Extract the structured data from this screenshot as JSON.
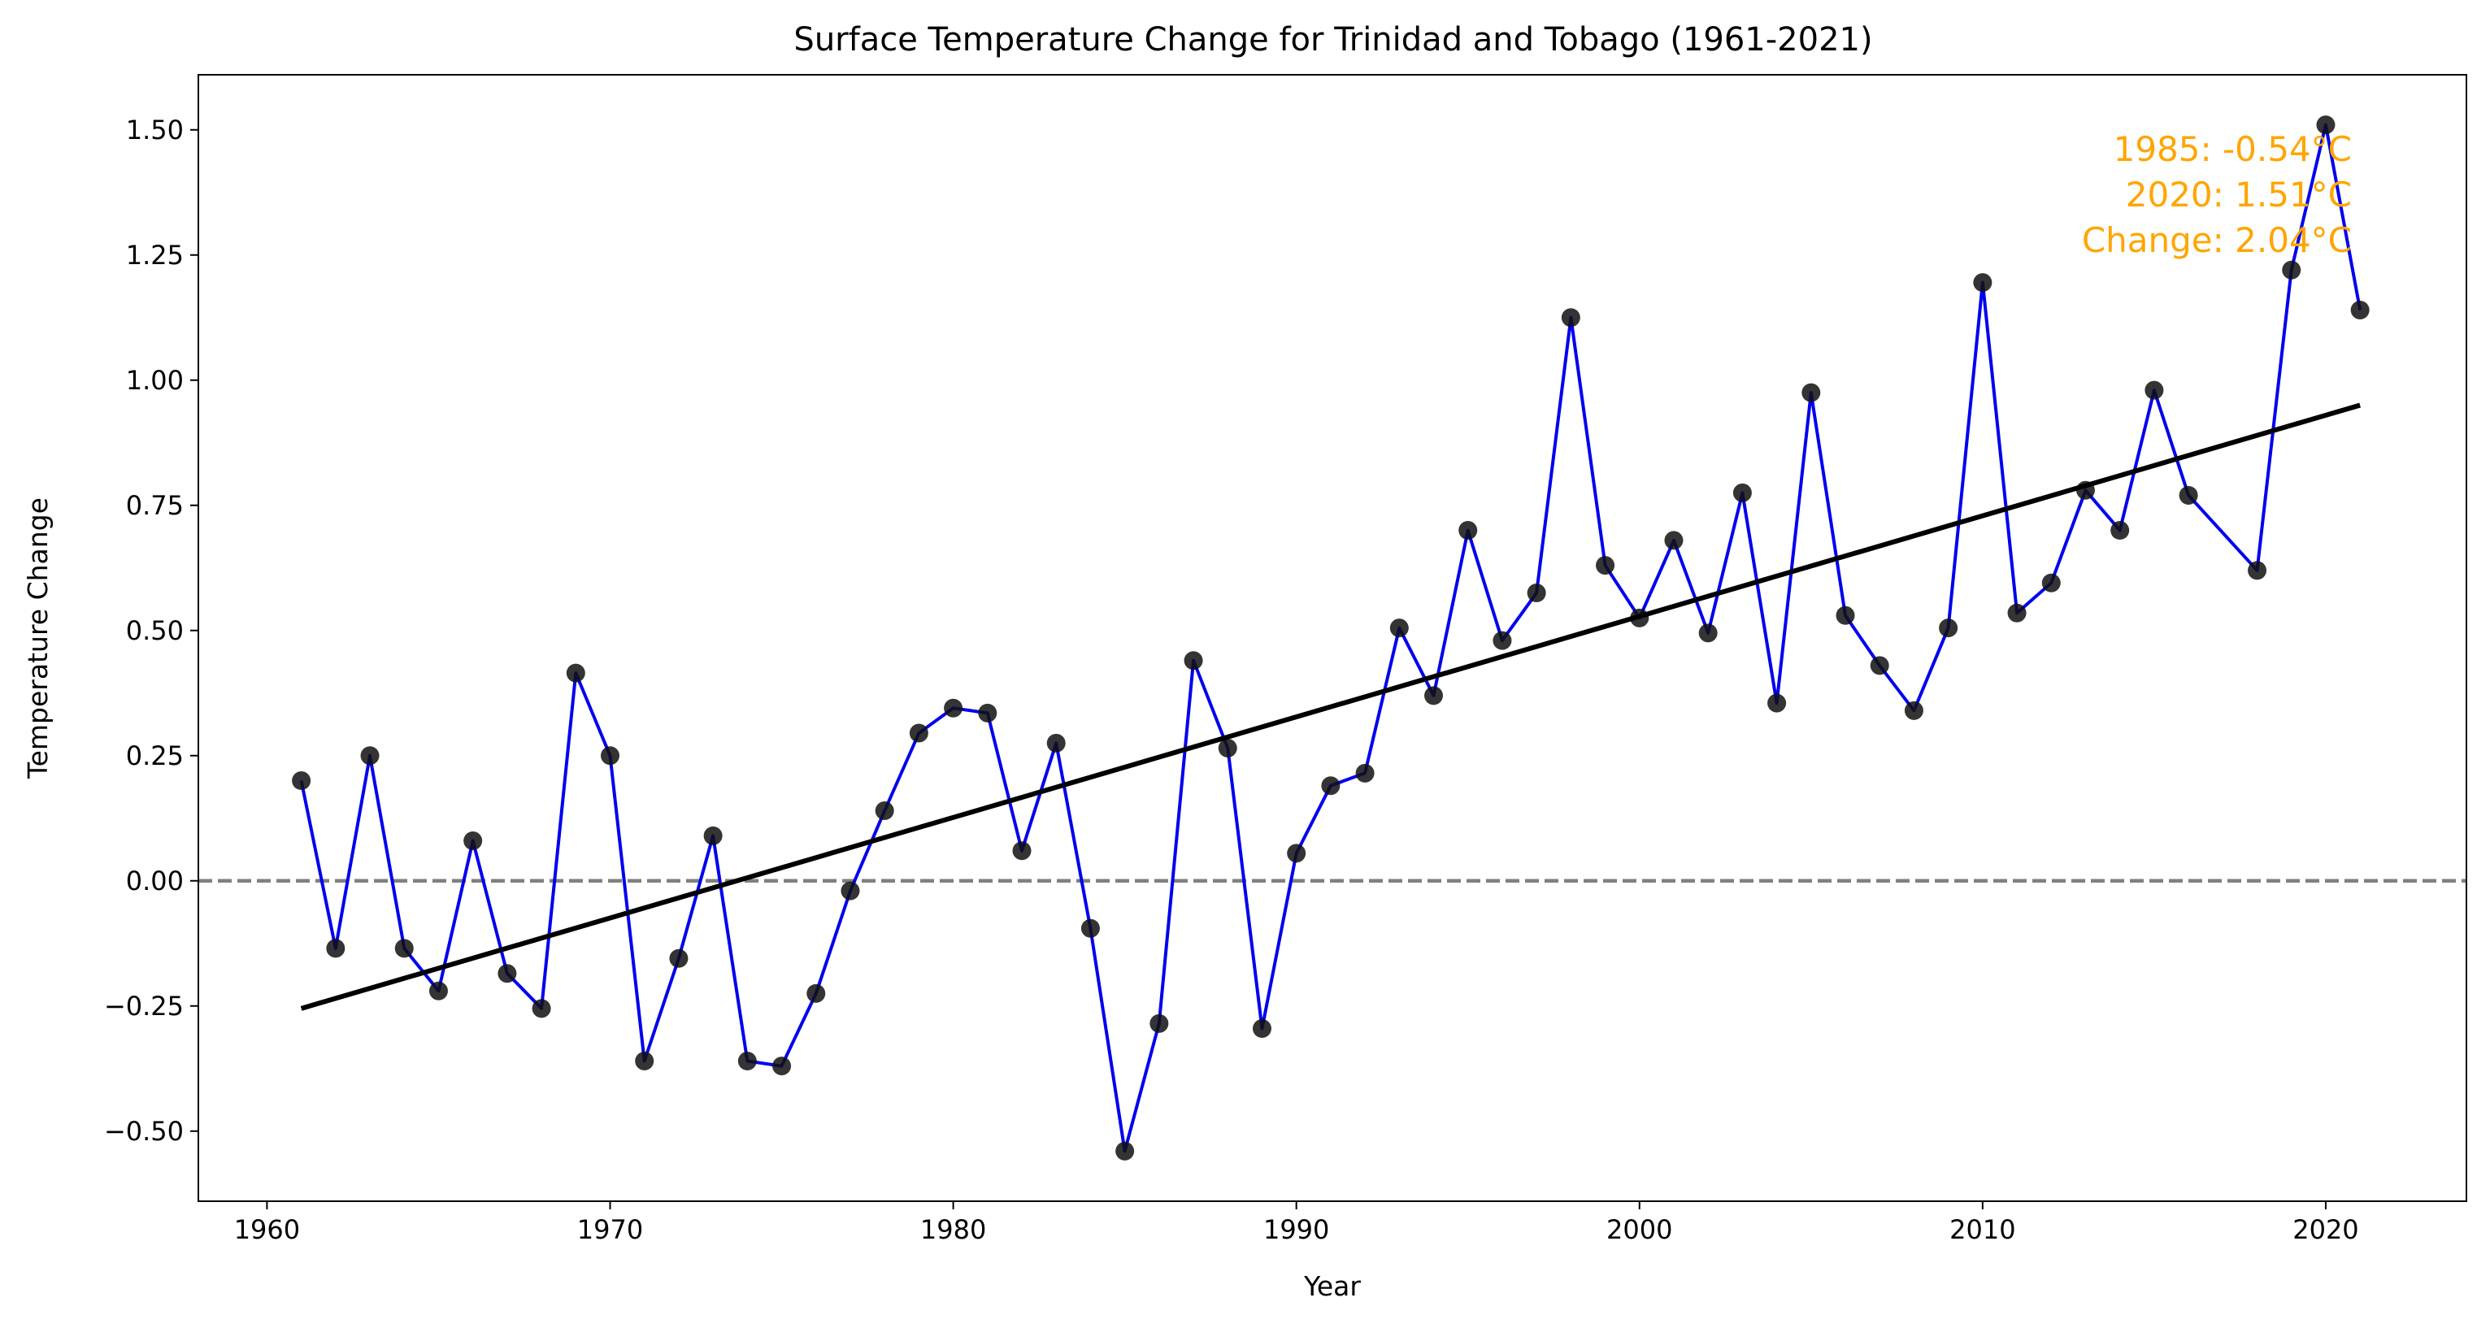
{
  "chart_data": {
    "type": "line",
    "title": "Surface Temperature Change for Trinidad and Tobago (1961-2021)",
    "xlabel": "Year",
    "ylabel": "Temperature Change",
    "xlim": [
      1958,
      2024.1
    ],
    "ylim": [
      -0.64,
      1.61
    ],
    "xticks": [
      1960,
      1970,
      1980,
      1990,
      2000,
      2010,
      2020
    ],
    "yticks": [
      -0.5,
      -0.25,
      0.0,
      0.25,
      0.5,
      0.75,
      1.0,
      1.25,
      1.5
    ],
    "ytick_labels": [
      "−0.50",
      "−0.25",
      "0.00",
      "0.25",
      "0.50",
      "0.75",
      "1.00",
      "1.25",
      "1.50"
    ],
    "grid": false,
    "series": [
      {
        "x": [
          1961,
          1962,
          1963,
          1964,
          1965,
          1966,
          1967,
          1968,
          1969,
          1970,
          1971,
          1972,
          1973,
          1974,
          1975,
          1976,
          1977,
          1978,
          1979,
          1980,
          1981,
          1982,
          1983,
          1984,
          1985,
          1986,
          1987,
          1988,
          1989,
          1990,
          1991,
          1992,
          1993,
          1994,
          1995,
          1996,
          1997,
          1998,
          1999,
          2000,
          2001,
          2002,
          2003,
          2004,
          2005,
          2006,
          2007,
          2008,
          2009,
          2010,
          2011,
          2012,
          2013,
          2014,
          2015,
          2016,
          2018,
          2019,
          2020,
          2021
        ],
        "values": [
          0.2,
          -0.135,
          0.25,
          -0.135,
          -0.22,
          0.08,
          -0.185,
          -0.255,
          0.415,
          0.25,
          -0.36,
          -0.155,
          0.09,
          -0.36,
          -0.37,
          -0.225,
          -0.02,
          0.14,
          0.295,
          0.345,
          0.335,
          0.06,
          0.275,
          -0.095,
          -0.54,
          -0.285,
          0.44,
          0.265,
          -0.295,
          0.055,
          0.19,
          0.215,
          0.505,
          0.37,
          0.7,
          0.48,
          0.575,
          1.125,
          0.63,
          0.525,
          0.68,
          0.495,
          0.775,
          0.355,
          0.975,
          0.53,
          0.43,
          0.34,
          0.505,
          1.195,
          0.535,
          0.595,
          0.78,
          0.7,
          0.98,
          0.77,
          0.62,
          1.22,
          1.51,
          1.14
        ],
        "line_color": "#0000ee",
        "marker_color": "#111111"
      }
    ],
    "trend": {
      "x": [
        1961,
        2021
      ],
      "y": [
        -0.255,
        0.95
      ],
      "color": "#000000"
    },
    "reference_line": {
      "y": 0.0,
      "style": "dashed",
      "color": "#808080"
    },
    "annotation": {
      "lines": [
        "1985: -0.54°C",
        "2020: 1.51°C",
        "Change: 2.04°C"
      ],
      "color": "#ffa500",
      "align": "right"
    }
  }
}
